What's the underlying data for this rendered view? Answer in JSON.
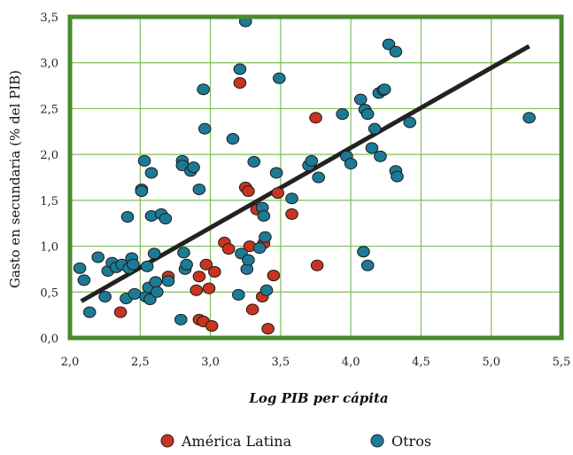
{
  "chart_data": {
    "type": "scatter",
    "title": "",
    "xlabel": "Log PIB per cápita",
    "ylabel": "Gasto en secundaria (% del PIB)",
    "xlim": [
      2.0,
      5.5
    ],
    "ylim": [
      0.0,
      3.5
    ],
    "xticks": [
      "2,0",
      "2,5",
      "3,0",
      "3,5",
      "4,0",
      "4,5",
      "5,0",
      "5,5"
    ],
    "yticks": [
      "0,0",
      "0,5",
      "1,0",
      "1,5",
      "2,0",
      "2,5",
      "3,0",
      "3,5"
    ],
    "grid": true,
    "legend_position": "bottom",
    "colors": {
      "frame": "#4a8a2e",
      "grid": "#7fbf5a",
      "trendline": "#222222",
      "latin_america": "#c8341f",
      "others": "#1d7a95"
    },
    "series": [
      {
        "name": "América Latina",
        "color": "#c8341f",
        "points": [
          [
            2.36,
            0.28
          ],
          [
            2.7,
            0.67
          ],
          [
            2.9,
            0.52
          ],
          [
            2.92,
            0.67
          ],
          [
            2.92,
            0.2
          ],
          [
            2.95,
            0.18
          ],
          [
            2.97,
            0.8
          ],
          [
            2.99,
            0.54
          ],
          [
            3.01,
            0.13
          ],
          [
            3.03,
            0.72
          ],
          [
            3.1,
            1.04
          ],
          [
            3.13,
            0.97
          ],
          [
            3.21,
            2.78
          ],
          [
            3.25,
            1.64
          ],
          [
            3.27,
            1.6
          ],
          [
            3.28,
            1.0
          ],
          [
            3.3,
            0.31
          ],
          [
            3.33,
            1.4
          ],
          [
            3.37,
            0.45
          ],
          [
            3.38,
            1.03
          ],
          [
            3.41,
            0.1
          ],
          [
            3.45,
            0.68
          ],
          [
            3.48,
            1.58
          ],
          [
            3.58,
            1.35
          ],
          [
            3.75,
            2.4
          ],
          [
            3.76,
            0.79
          ]
        ]
      },
      {
        "name": "Otros",
        "color": "#1d7a95",
        "points": [
          [
            2.07,
            0.76
          ],
          [
            2.1,
            0.63
          ],
          [
            2.14,
            0.28
          ],
          [
            2.2,
            0.88
          ],
          [
            2.25,
            0.45
          ],
          [
            2.27,
            0.73
          ],
          [
            2.3,
            0.82
          ],
          [
            2.33,
            0.77
          ],
          [
            2.37,
            0.8
          ],
          [
            2.4,
            0.43
          ],
          [
            2.41,
            1.32
          ],
          [
            2.42,
            0.76
          ],
          [
            2.44,
            0.87
          ],
          [
            2.45,
            0.8
          ],
          [
            2.46,
            0.48
          ],
          [
            2.51,
            1.62
          ],
          [
            2.51,
            1.6
          ],
          [
            2.53,
            1.93
          ],
          [
            2.54,
            0.45
          ],
          [
            2.55,
            0.78
          ],
          [
            2.56,
            0.55
          ],
          [
            2.57,
            0.42
          ],
          [
            2.58,
            1.8
          ],
          [
            2.58,
            1.33
          ],
          [
            2.6,
            0.92
          ],
          [
            2.61,
            0.61
          ],
          [
            2.62,
            0.5
          ],
          [
            2.65,
            1.35
          ],
          [
            2.68,
            1.3
          ],
          [
            2.7,
            0.62
          ],
          [
            2.79,
            0.2
          ],
          [
            2.8,
            1.93
          ],
          [
            2.8,
            1.88
          ],
          [
            2.81,
            0.93
          ],
          [
            2.82,
            0.75
          ],
          [
            2.83,
            0.8
          ],
          [
            2.86,
            1.82
          ],
          [
            2.88,
            1.86
          ],
          [
            2.92,
            1.62
          ],
          [
            2.95,
            2.71
          ],
          [
            2.96,
            2.28
          ],
          [
            3.16,
            2.17
          ],
          [
            3.2,
            0.47
          ],
          [
            3.21,
            2.93
          ],
          [
            3.22,
            0.92
          ],
          [
            3.25,
            3.45
          ],
          [
            3.26,
            0.75
          ],
          [
            3.27,
            0.85
          ],
          [
            3.31,
            1.92
          ],
          [
            3.35,
            0.98
          ],
          [
            3.37,
            1.42
          ],
          [
            3.38,
            1.33
          ],
          [
            3.39,
            1.1
          ],
          [
            3.4,
            0.52
          ],
          [
            3.47,
            1.8
          ],
          [
            3.49,
            2.83
          ],
          [
            3.58,
            1.52
          ],
          [
            3.7,
            1.88
          ],
          [
            3.72,
            1.93
          ],
          [
            3.77,
            1.75
          ],
          [
            3.94,
            2.44
          ],
          [
            3.97,
            1.98
          ],
          [
            4.0,
            1.9
          ],
          [
            4.07,
            2.6
          ],
          [
            4.09,
            0.94
          ],
          [
            4.1,
            2.49
          ],
          [
            4.12,
            2.44
          ],
          [
            4.12,
            0.79
          ],
          [
            4.15,
            2.07
          ],
          [
            4.17,
            2.28
          ],
          [
            4.2,
            2.67
          ],
          [
            4.21,
            1.98
          ],
          [
            4.23,
            2.7
          ],
          [
            4.24,
            2.71
          ],
          [
            4.27,
            3.2
          ],
          [
            4.32,
            1.82
          ],
          [
            4.32,
            3.12
          ],
          [
            4.33,
            1.76
          ],
          [
            4.42,
            2.35
          ],
          [
            5.27,
            2.4
          ]
        ]
      }
    ],
    "trendline": {
      "x": [
        2.08,
        5.27
      ],
      "y": [
        0.4,
        3.18
      ]
    }
  },
  "legend": {
    "items": [
      {
        "label": "América Latina",
        "color": "#c8341f"
      },
      {
        "label": "Otros",
        "color": "#1d7a95"
      }
    ]
  }
}
